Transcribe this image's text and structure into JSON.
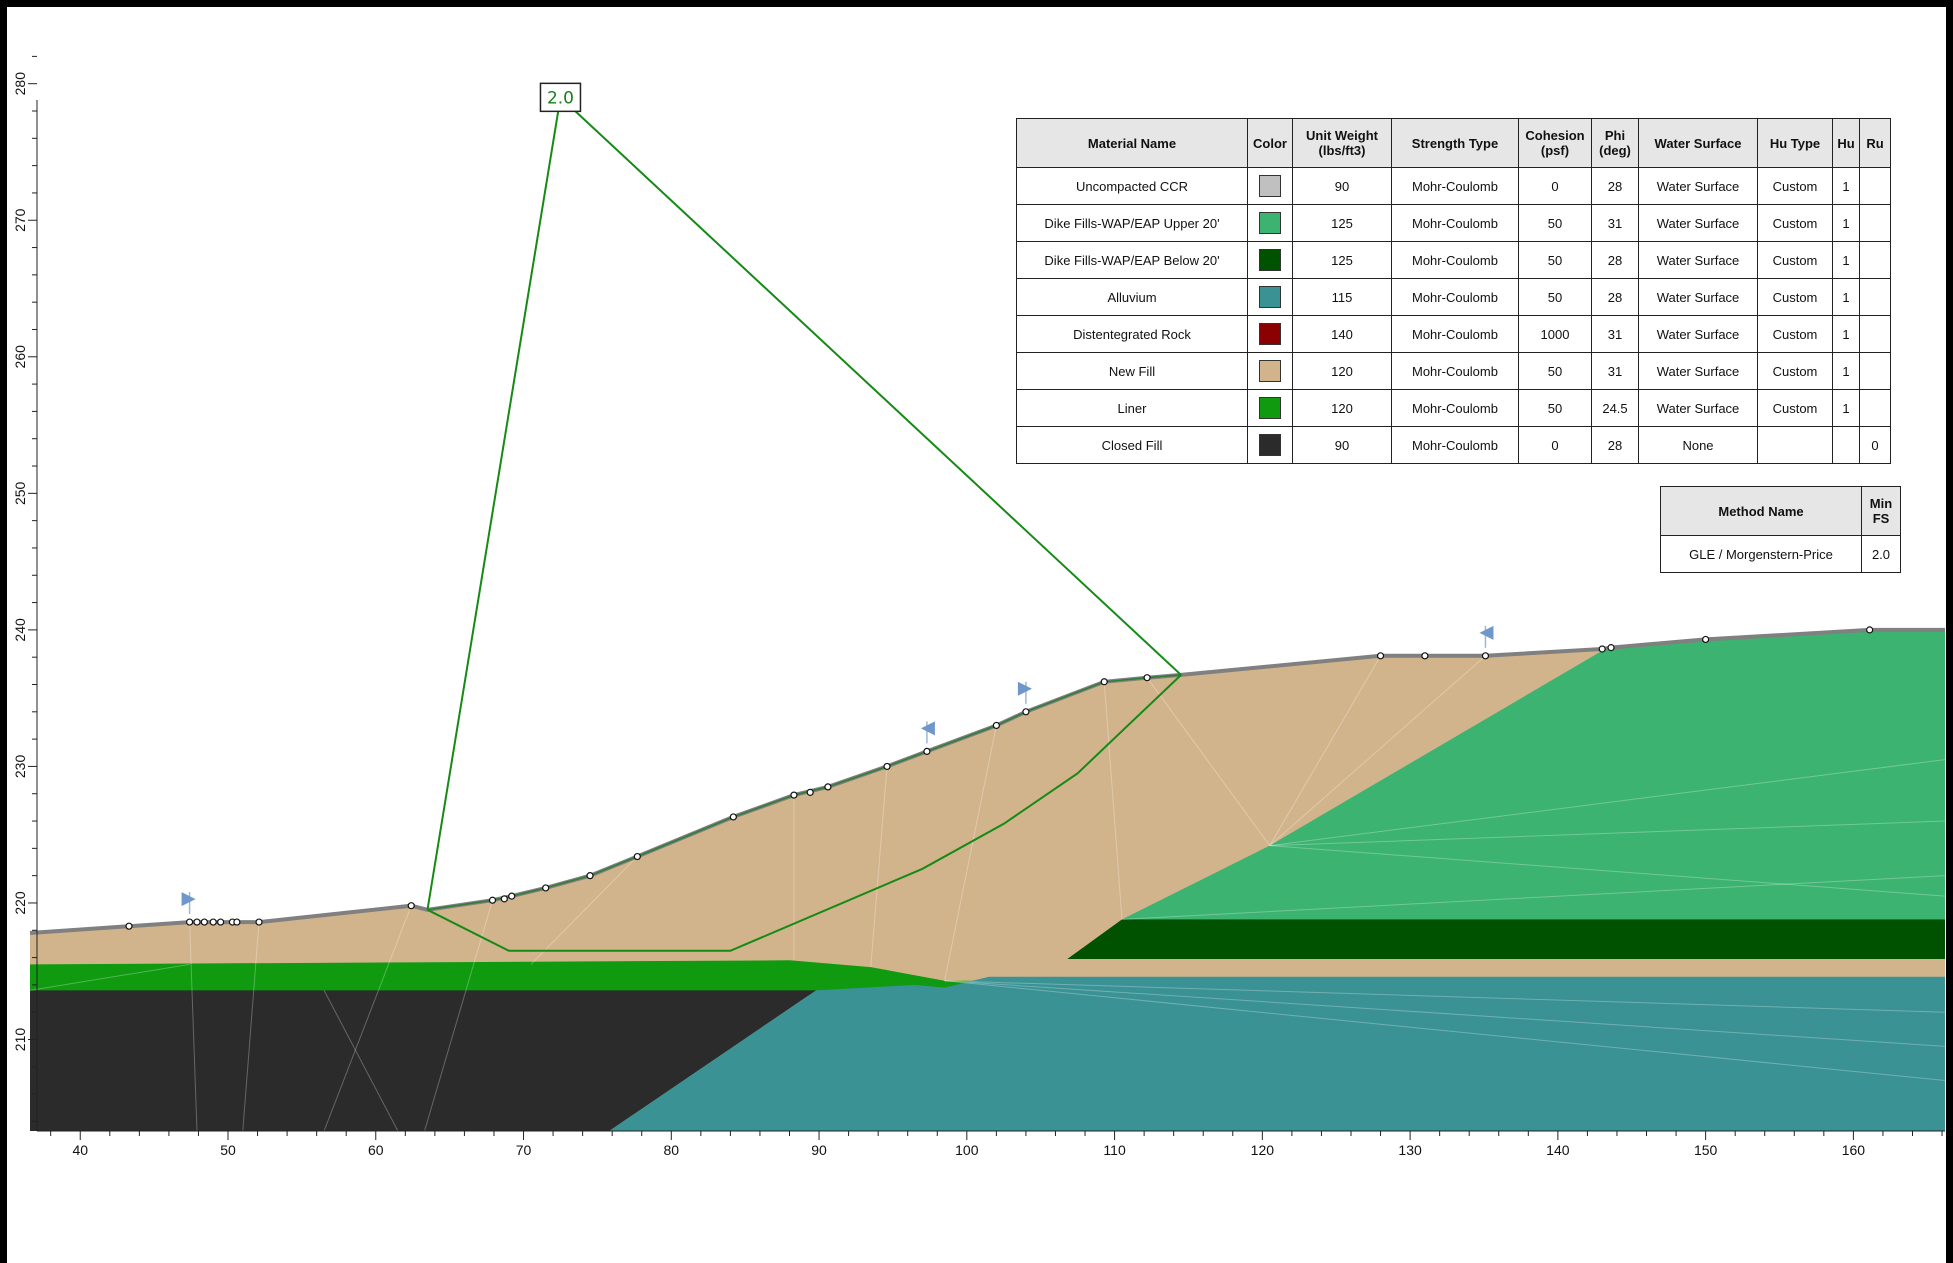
{
  "materials_table": {
    "headers": {
      "material_name": "Material Name",
      "color": "Color",
      "unit_weight": [
        "Unit Weight",
        "(lbs/ft3)"
      ],
      "strength_type": "Strength Type",
      "cohesion": [
        "Cohesion",
        "(psf)"
      ],
      "phi": [
        "Phi",
        "(deg)"
      ],
      "water_surface": "Water Surface",
      "hu_type": "Hu Type",
      "hu": "Hu",
      "ru": "Ru"
    },
    "rows": [
      {
        "name": "Uncompacted CCR",
        "color": "#c0c0c0",
        "unit_weight": "90",
        "strength_type": "Mohr-Coulomb",
        "cohesion": "0",
        "phi": "28",
        "water_surface": "Water Surface",
        "hu_type": "Custom",
        "hu": "1",
        "ru": ""
      },
      {
        "name": "Dike Fills-WAP/EAP Upper 20'",
        "color": "#3cb371",
        "unit_weight": "125",
        "strength_type": "Mohr-Coulomb",
        "cohesion": "50",
        "phi": "31",
        "water_surface": "Water Surface",
        "hu_type": "Custom",
        "hu": "1",
        "ru": ""
      },
      {
        "name": "Dike Fills-WAP/EAP Below 20'",
        "color": "#005200",
        "unit_weight": "125",
        "strength_type": "Mohr-Coulomb",
        "cohesion": "50",
        "phi": "28",
        "water_surface": "Water Surface",
        "hu_type": "Custom",
        "hu": "1",
        "ru": ""
      },
      {
        "name": "Alluvium",
        "color": "#3a9294",
        "unit_weight": "115",
        "strength_type": "Mohr-Coulomb",
        "cohesion": "50",
        "phi": "28",
        "water_surface": "Water Surface",
        "hu_type": "Custom",
        "hu": "1",
        "ru": ""
      },
      {
        "name": "Distentegrated Rock",
        "color": "#8b0000",
        "unit_weight": "140",
        "strength_type": "Mohr-Coulomb",
        "cohesion": "1000",
        "phi": "31",
        "water_surface": "Water Surface",
        "hu_type": "Custom",
        "hu": "1",
        "ru": ""
      },
      {
        "name": "New Fill",
        "color": "#d2b48c",
        "unit_weight": "120",
        "strength_type": "Mohr-Coulomb",
        "cohesion": "50",
        "phi": "31",
        "water_surface": "Water Surface",
        "hu_type": "Custom",
        "hu": "1",
        "ru": ""
      },
      {
        "name": "Liner",
        "color": "#0f9a0f",
        "unit_weight": "120",
        "strength_type": "Mohr-Coulomb",
        "cohesion": "50",
        "phi": "24.5",
        "water_surface": "Water Surface",
        "hu_type": "Custom",
        "hu": "1",
        "ru": ""
      },
      {
        "name": "Closed Fill",
        "color": "#2b2b2b",
        "unit_weight": "90",
        "strength_type": "Mohr-Coulomb",
        "cohesion": "0",
        "phi": "28",
        "water_surface": "None",
        "hu_type": "",
        "hu": "",
        "ru": "0"
      }
    ]
  },
  "method_table": {
    "headers": {
      "method_name": "Method Name",
      "min_fs": [
        "Min",
        "FS"
      ]
    },
    "rows": [
      {
        "method": "GLE / Morgenstern-Price",
        "fs": "2.0"
      }
    ]
  },
  "slip": {
    "fs_label": "2.0",
    "center": [
      72.5,
      279.0
    ],
    "entry": [
      63.5,
      219.5
    ],
    "exit": [
      114.5,
      236.7
    ],
    "surface": [
      [
        63.5,
        219.5
      ],
      [
        69,
        216.5
      ],
      [
        84,
        216.5
      ],
      [
        97,
        222.5
      ],
      [
        102.5,
        225.8
      ],
      [
        107.5,
        229.5
      ],
      [
        114.5,
        236.7
      ]
    ]
  },
  "axes": {
    "x_ticks": [
      "40",
      "50",
      "60",
      "70",
      "80",
      "90",
      "100",
      "110",
      "120",
      "130",
      "140",
      "150",
      "160"
    ],
    "y_ticks": [
      "210",
      "220",
      "230",
      "240",
      "250",
      "260",
      "270",
      "280"
    ],
    "x_range": [
      36.6,
      166.2
    ],
    "y_range": [
      203.3,
      283.2
    ]
  },
  "geometry": {
    "ground": [
      [
        36.6,
        217.8
      ],
      [
        43.3,
        218.3
      ],
      [
        47.4,
        218.6
      ],
      [
        52.1,
        218.6
      ],
      [
        62.4,
        219.8
      ],
      [
        63.5,
        219.5
      ],
      [
        67.9,
        220.2
      ],
      [
        69.2,
        220.5
      ],
      [
        71.5,
        221.1
      ],
      [
        74.5,
        222.0
      ],
      [
        77.7,
        223.4
      ],
      [
        84.2,
        226.3
      ],
      [
        88.3,
        227.9
      ],
      [
        90.6,
        228.5
      ],
      [
        94.6,
        230.0
      ],
      [
        97.3,
        231.1
      ],
      [
        102.0,
        233.0
      ],
      [
        104.0,
        234.0
      ],
      [
        109.3,
        236.2
      ],
      [
        112.2,
        236.5
      ],
      [
        114.5,
        236.7
      ],
      [
        128.0,
        238.1
      ],
      [
        131.0,
        238.1
      ],
      [
        135.1,
        238.1
      ],
      [
        143.0,
        238.6
      ],
      [
        143.6,
        238.7
      ],
      [
        150.0,
        239.3
      ],
      [
        161.1,
        240.0
      ],
      [
        166.2,
        240.0
      ]
    ],
    "points": [
      [
        43.3,
        218.3
      ],
      [
        47.4,
        218.6
      ],
      [
        47.9,
        218.6
      ],
      [
        48.4,
        218.6
      ],
      [
        49.0,
        218.6
      ],
      [
        49.5,
        218.6
      ],
      [
        50.3,
        218.6
      ],
      [
        50.6,
        218.6
      ],
      [
        52.1,
        218.6
      ],
      [
        62.4,
        219.8
      ],
      [
        67.9,
        220.2
      ],
      [
        68.7,
        220.3
      ],
      [
        69.2,
        220.5
      ],
      [
        71.5,
        221.1
      ],
      [
        74.5,
        222.0
      ],
      [
        77.7,
        223.4
      ],
      [
        84.2,
        226.3
      ],
      [
        88.3,
        227.9
      ],
      [
        89.4,
        228.1
      ],
      [
        90.6,
        228.5
      ],
      [
        94.6,
        230.0
      ],
      [
        97.3,
        231.1
      ],
      [
        102.0,
        233.0
      ],
      [
        104.0,
        234.0
      ],
      [
        109.3,
        236.2
      ],
      [
        112.2,
        236.5
      ],
      [
        128.0,
        238.1
      ],
      [
        131.0,
        238.1
      ],
      [
        135.1,
        238.1
      ],
      [
        143.0,
        238.6
      ],
      [
        143.6,
        238.7
      ],
      [
        150.0,
        239.3
      ],
      [
        161.1,
        240.0
      ]
    ]
  }
}
